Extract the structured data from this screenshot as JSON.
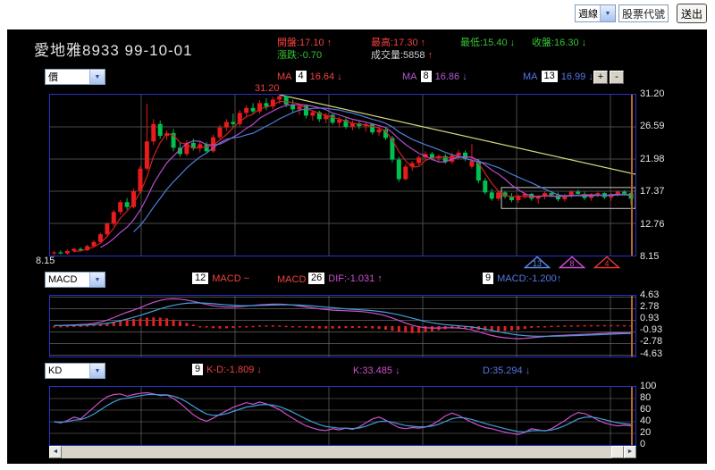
{
  "toolbar": {
    "period_value": "週線",
    "stock_input_value": "股票代號",
    "submit_label": "送出"
  },
  "header": {
    "title": "愛地雅8933 99-10-01",
    "stats": {
      "open": {
        "text": "開盤:17.10",
        "arrow": "↑"
      },
      "change": {
        "text": "漲跌:-0.70",
        "arrow": ""
      },
      "high": {
        "text": "最高:17.30",
        "arrow": "↑"
      },
      "volume": {
        "text": "成交量:5858",
        "arrow": "↑"
      },
      "low": {
        "text": "最低:15.40",
        "arrow": "↓"
      },
      "close": {
        "text": "收盤:16.30",
        "arrow": "↓"
      }
    }
  },
  "ma_bar": {
    "series_select_value": "價",
    "ma4": {
      "prefix": "MA",
      "period": "4",
      "value": "16.64 ↓"
    },
    "ma8": {
      "prefix": "MA",
      "period": "8",
      "value": "16.86 ↓"
    },
    "ma13": {
      "prefix": "MA",
      "period": "13",
      "value": "16.99 ↓"
    },
    "zoom_in_label": "+",
    "zoom_out_label": "-"
  },
  "main_chart": {
    "peak_label": "31.20",
    "y_labels": [
      "31.20",
      "26.59",
      "21.98",
      "17.37",
      "12.76",
      "8.15"
    ],
    "bottom_left_label": "8.15",
    "triangle_markers": [
      {
        "number": "13",
        "color": "#5c8ce6"
      },
      {
        "number": "8",
        "color": "#cf4fcf"
      },
      {
        "number": "4",
        "color": "#e63939"
      }
    ]
  },
  "macd_bar": {
    "indicator_select_value": "MACD",
    "param1": "12",
    "label1": "MACD ~",
    "label2": "MACD",
    "param2": "26",
    "dif_text": "DIF:-1.031 ↑",
    "param3": "9",
    "macd_text": "MACD:-1.200↑"
  },
  "macd_chart": {
    "y_labels": [
      "4.63",
      "2.78",
      "0.93",
      "-0.93",
      "-2.78",
      "-4.63"
    ]
  },
  "kd_bar": {
    "indicator_select_value": "KD",
    "param": "9",
    "kd_text": "K-D:-1.809 ↓",
    "k_text": "K:33.485 ↓",
    "d_text": "D:35.294 ↓"
  },
  "kd_chart": {
    "y_labels": [
      "100",
      "80",
      "60",
      "40",
      "20",
      "0"
    ]
  },
  "colors": {
    "up": "#e81c1c",
    "down": "#00c050",
    "ma4": "#d02020",
    "ma8": "#b44cd0",
    "ma13": "#4f7fd8",
    "dif": "#cf4fcf",
    "dem": "#3f9fd8",
    "hist": "#dd2222",
    "trendline": "#d6d680",
    "box": "#c8c8c8",
    "cursor": "#b4662d",
    "grid": "#4a4a4a",
    "grid2": "#7a7a7a"
  },
  "chart_data": {
    "type": "candlestick",
    "title": "愛地雅8933 weekly candlestick with MA4/MA8/MA13, MACD and KD",
    "price": {
      "ylim": [
        8.15,
        31.2
      ],
      "yticks": [
        31.2,
        26.59,
        21.98,
        17.37,
        12.76,
        8.15
      ],
      "ma_periods": [
        4,
        8,
        13
      ],
      "trendline": {
        "x1_bar": 34,
        "y1": 31.2,
        "x2_bar": 87,
        "y2": 19.8
      },
      "consolidation_box": {
        "from_bar": 68,
        "to_bar": 87,
        "top": 17.9,
        "bottom": 14.9
      },
      "ohlc": [
        [
          8.5,
          8.8,
          8.2,
          8.6
        ],
        [
          8.6,
          8.9,
          8.3,
          8.45
        ],
        [
          8.45,
          9.0,
          8.3,
          8.8
        ],
        [
          8.8,
          9.3,
          8.6,
          9.1
        ],
        [
          9.1,
          9.3,
          8.7,
          8.9
        ],
        [
          8.9,
          9.7,
          8.8,
          9.5
        ],
        [
          9.5,
          10.3,
          9.3,
          10.1
        ],
        [
          10.1,
          11.4,
          9.9,
          11.2
        ],
        [
          11.2,
          12.9,
          11.0,
          12.7
        ],
        [
          12.7,
          14.7,
          12.4,
          14.4
        ],
        [
          14.4,
          16.1,
          14.0,
          15.8
        ],
        [
          15.8,
          16.4,
          14.7,
          15.1
        ],
        [
          15.1,
          17.7,
          14.9,
          17.4
        ],
        [
          17.4,
          21.0,
          17.1,
          20.6
        ],
        [
          20.6,
          29.9,
          20.3,
          24.5
        ],
        [
          24.5,
          27.7,
          24.0,
          27.0
        ],
        [
          27.0,
          27.5,
          24.9,
          25.3
        ],
        [
          25.3,
          26.1,
          24.7,
          25.7
        ],
        [
          25.7,
          26.3,
          23.1,
          23.6
        ],
        [
          23.6,
          24.4,
          22.3,
          22.7
        ],
        [
          22.7,
          24.7,
          22.4,
          24.3
        ],
        [
          24.3,
          24.9,
          23.2,
          23.5
        ],
        [
          23.5,
          24.5,
          22.9,
          24.1
        ],
        [
          24.1,
          24.4,
          22.8,
          23.1
        ],
        [
          23.1,
          25.5,
          22.9,
          25.1
        ],
        [
          25.1,
          26.9,
          24.8,
          26.5
        ],
        [
          26.5,
          27.7,
          26.0,
          27.3
        ],
        [
          27.3,
          28.5,
          26.6,
          27.0
        ],
        [
          27.0,
          29.0,
          26.7,
          28.6
        ],
        [
          28.6,
          29.7,
          28.0,
          29.3
        ],
        [
          29.3,
          30.0,
          28.4,
          28.8
        ],
        [
          28.8,
          30.4,
          28.5,
          30.0
        ],
        [
          30.0,
          30.7,
          29.0,
          29.5
        ],
        [
          29.5,
          30.9,
          29.1,
          30.5
        ],
        [
          30.5,
          31.2,
          29.9,
          31.0
        ],
        [
          31.0,
          31.1,
          29.4,
          29.8
        ],
        [
          29.8,
          30.5,
          28.7,
          29.1
        ],
        [
          29.1,
          29.9,
          28.3,
          29.6
        ],
        [
          29.6,
          29.8,
          27.8,
          28.2
        ],
        [
          28.2,
          29.0,
          27.5,
          28.7
        ],
        [
          28.7,
          28.9,
          27.3,
          27.7
        ],
        [
          27.7,
          28.6,
          27.1,
          28.3
        ],
        [
          28.3,
          28.5,
          26.9,
          27.2
        ],
        [
          27.2,
          28.0,
          26.5,
          27.6
        ],
        [
          27.6,
          27.9,
          26.3,
          26.6
        ],
        [
          26.6,
          27.5,
          26.1,
          27.1
        ],
        [
          27.1,
          27.4,
          26.3,
          26.7
        ],
        [
          26.7,
          27.3,
          25.9,
          27.0
        ],
        [
          27.0,
          27.1,
          25.5,
          25.8
        ],
        [
          25.8,
          26.5,
          25.3,
          26.2
        ],
        [
          26.2,
          26.4,
          24.7,
          25.0
        ],
        [
          25.0,
          25.3,
          21.5,
          21.9
        ],
        [
          21.9,
          22.3,
          18.7,
          19.1
        ],
        [
          19.1,
          21.3,
          18.9,
          20.9
        ],
        [
          20.9,
          21.7,
          20.3,
          21.4
        ],
        [
          21.4,
          22.5,
          21.1,
          22.2
        ],
        [
          22.2,
          23.1,
          21.9,
          22.7
        ],
        [
          22.7,
          23.0,
          21.8,
          22.1
        ],
        [
          22.1,
          22.6,
          21.6,
          22.4
        ],
        [
          22.4,
          22.7,
          21.3,
          21.6
        ],
        [
          21.6,
          22.9,
          21.3,
          22.5
        ],
        [
          22.5,
          23.3,
          22.0,
          22.9
        ],
        [
          22.9,
          23.2,
          21.7,
          22.0
        ],
        [
          20.9,
          24.1,
          20.6,
          21.7
        ],
        [
          21.7,
          22.0,
          18.5,
          18.9
        ],
        [
          18.9,
          19.3,
          16.9,
          17.2
        ],
        [
          17.2,
          17.7,
          16.0,
          16.3
        ],
        [
          16.3,
          17.5,
          16.0,
          17.2
        ],
        [
          17.2,
          17.4,
          16.3,
          16.6
        ],
        [
          16.6,
          17.1,
          15.8,
          16.1
        ],
        [
          16.1,
          16.9,
          15.7,
          16.7
        ],
        [
          16.7,
          17.2,
          16.3,
          17.0
        ],
        [
          17.0,
          17.1,
          16.0,
          16.3
        ],
        [
          16.3,
          16.8,
          15.6,
          16.6
        ],
        [
          16.6,
          17.3,
          16.2,
          17.1
        ],
        [
          17.1,
          17.4,
          16.5,
          16.8
        ],
        [
          16.8,
          17.2,
          15.9,
          16.2
        ],
        [
          16.2,
          17.0,
          15.9,
          16.8
        ],
        [
          16.8,
          17.5,
          16.4,
          17.3
        ],
        [
          17.3,
          17.6,
          16.7,
          17.0
        ],
        [
          17.0,
          17.3,
          16.1,
          16.4
        ],
        [
          16.4,
          17.1,
          16.0,
          16.9
        ],
        [
          16.9,
          17.3,
          16.5,
          17.1
        ],
        [
          17.1,
          17.2,
          16.2,
          16.5
        ],
        [
          16.5,
          17.1,
          16.0,
          16.9
        ],
        [
          16.9,
          17.5,
          16.6,
          17.3
        ],
        [
          17.3,
          17.5,
          16.7,
          17.0
        ],
        [
          17.1,
          17.3,
          15.4,
          16.3
        ]
      ]
    },
    "macd": {
      "ylim": [
        -4.63,
        4.63
      ],
      "yticks": [
        4.63,
        2.78,
        0.93,
        -0.93,
        -2.78,
        -4.63
      ],
      "signal_period": 9,
      "dif": [
        0.1,
        0.12,
        0.15,
        0.2,
        0.25,
        0.32,
        0.45,
        0.65,
        0.95,
        1.35,
        1.8,
        2.2,
        2.55,
        2.95,
        3.4,
        3.8,
        4.1,
        4.3,
        4.35,
        4.3,
        4.15,
        3.95,
        3.7,
        3.45,
        3.25,
        3.1,
        3.05,
        3.05,
        3.1,
        3.2,
        3.3,
        3.4,
        3.45,
        3.5,
        3.5,
        3.45,
        3.35,
        3.2,
        3.05,
        2.9,
        2.75,
        2.65,
        2.55,
        2.5,
        2.45,
        2.4,
        2.35,
        2.25,
        2.1,
        1.9,
        1.65,
        1.3,
        0.9,
        0.5,
        0.15,
        -0.1,
        -0.25,
        -0.3,
        -0.3,
        -0.25,
        -0.25,
        -0.3,
        -0.4,
        -0.6,
        -0.9,
        -1.2,
        -1.5,
        -1.7,
        -1.85,
        -1.95,
        -2.0,
        -1.95,
        -1.85,
        -1.75,
        -1.65,
        -1.55,
        -1.5,
        -1.45,
        -1.4,
        -1.35,
        -1.3,
        -1.25,
        -1.2,
        -1.15,
        -1.1,
        -1.06,
        -1.04,
        -1.03
      ]
    },
    "kd": {
      "ylim": [
        0,
        100
      ],
      "yticks": [
        0,
        20,
        40,
        60,
        80,
        100
      ],
      "d_smooth": 3,
      "k": [
        40,
        38,
        42,
        48,
        45,
        55,
        65,
        75,
        83,
        87,
        88,
        84,
        87,
        89,
        90,
        88,
        85,
        86,
        80,
        72,
        62,
        52,
        45,
        41,
        46,
        53,
        59,
        65,
        69,
        73,
        70,
        74,
        71,
        66,
        61,
        53,
        46,
        39,
        33,
        29,
        26,
        25,
        28,
        26,
        29,
        27,
        31,
        38,
        45,
        48,
        43,
        36,
        30,
        28,
        30,
        29,
        31,
        35,
        42,
        50,
        55,
        51,
        45,
        39,
        34,
        30,
        28,
        25,
        22,
        20,
        18,
        22,
        28,
        26,
        24,
        28,
        35,
        42,
        50,
        56,
        54,
        49,
        43,
        38,
        35,
        33,
        34,
        33
      ]
    }
  }
}
